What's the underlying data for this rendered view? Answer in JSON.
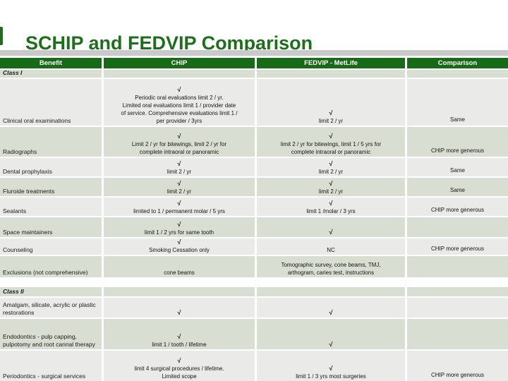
{
  "slide": {
    "title": "SCHIP and FEDVIP Comparison",
    "accent_color": "#1e6e1e",
    "header_bg_color": "#176b17",
    "row_light_color": "#eaeae8",
    "row_green_color": "#d9ded3"
  },
  "table": {
    "check_glyph": "√",
    "columns": [
      "Benefit",
      "CHIP",
      "FEDVIP - MetLife",
      "Comparison"
    ],
    "rows": [
      {
        "kind": "section",
        "label": "Class I",
        "height": 11,
        "gap": 2,
        "shade": "green"
      },
      {
        "kind": "data",
        "label": "Clinical oral examinations",
        "height": 66,
        "gap": 2,
        "shade": "light",
        "chip": {
          "check": true,
          "lines": [
            "Periodic oral evaluations limit 2 / yr.",
            "Limited oral evaluations limit 1 / provider date",
            "of service.  Comprehensive evaluations limit 1 /",
            "per provider / 3yrs"
          ]
        },
        "fedvip": {
          "check": true,
          "lines": [
            "limit 2 / yr"
          ]
        },
        "comparison": "Same"
      },
      {
        "kind": "data",
        "label": "Radiographs",
        "height": 42,
        "gap": 2,
        "shade": "green",
        "chip": {
          "check": true,
          "lines": [
            "Limit 2 / yr for bitewings, limit 2 / yr for",
            "complete intraoral or panoramic"
          ]
        },
        "fedvip": {
          "check": true,
          "lines": [
            "limit 2 / yr for bitewings, limit 1 / 5 yrs for",
            "complete intraoral or panoramic"
          ]
        },
        "comparison": "CHIP more generous"
      },
      {
        "kind": "data",
        "label": "Dental prophylaxis",
        "height": 26,
        "gap": 2,
        "shade": "light",
        "chip": {
          "check": true,
          "lines": [
            "limit 2 / yr"
          ]
        },
        "fedvip": {
          "check": true,
          "lines": [
            "limit 2 / yr"
          ]
        },
        "comparison": "Same"
      },
      {
        "kind": "data",
        "label": "Fluroide treatments",
        "height": 26,
        "gap": 2,
        "shade": "green",
        "chip": {
          "check": true,
          "lines": [
            "limit 2 / yr"
          ]
        },
        "fedvip": {
          "check": true,
          "lines": [
            "limit 2 / yr"
          ]
        },
        "comparison": "Same"
      },
      {
        "kind": "data",
        "label": "Sealants",
        "height": 26,
        "gap": 2,
        "shade": "light",
        "chip": {
          "check": true,
          "lines": [
            "limited to 1 / permanent  molar / 5 yrs"
          ]
        },
        "fedvip": {
          "check": true,
          "lines": [
            "limit 1 /molar / 3 yrs"
          ]
        },
        "comparison": "CHIP more generous"
      },
      {
        "kind": "data",
        "label": "Space maintainers",
        "height": 28,
        "gap": 2,
        "shade": "green",
        "chip": {
          "check": true,
          "lines": [
            "limit 1 / 2 yrs for same tooth"
          ]
        },
        "fedvip": {
          "check": true,
          "lines": []
        },
        "comparison": ""
      },
      {
        "kind": "data",
        "label": "Counseling",
        "height": 23,
        "gap": 2,
        "shade": "light",
        "chip": {
          "check": true,
          "lines": [
            "Smoking Cessation only"
          ]
        },
        "fedvip": {
          "check": false,
          "lines": [
            "NC"
          ]
        },
        "comparison": "CHIP more generous"
      },
      {
        "kind": "data",
        "label": "Exclusions (not comprehensive)",
        "height": 30,
        "gap": 2,
        "shade": "green",
        "chip": {
          "check": false,
          "lines": [
            "cone beams"
          ]
        },
        "fedvip": {
          "check": false,
          "lines": [
            "Tomographic survey, cone beams, TMJ,",
            "arthogram, caries test, instructions"
          ]
        },
        "comparison": ""
      },
      {
        "kind": "section",
        "label": "Class II",
        "height": 13,
        "gap": 14,
        "shade": "green"
      },
      {
        "kind": "data",
        "label": "Amalgam, silicate, acrylic or plastic restorations",
        "height": 28,
        "gap": 2,
        "shade": "light",
        "chip": {
          "check": true,
          "lines": []
        },
        "fedvip": {
          "check": true,
          "lines": []
        },
        "comparison": ""
      },
      {
        "kind": "data",
        "label": "Endodontics - pulp capping, pulpotomy and root cannal therapy",
        "height": 43,
        "gap": 2,
        "shade": "green",
        "chip": {
          "check": true,
          "lines": [
            "limit 1 / tooth / lifetime"
          ]
        },
        "fedvip": {
          "check": true,
          "lines": []
        },
        "comparison": ""
      },
      {
        "kind": "data",
        "label": "Periodontics - surgical services",
        "height": 43,
        "gap": 2,
        "shade": "light",
        "chip": {
          "check": true,
          "lines": [
            "limit 4 surgical procedures / lifetime.",
            "Limited scope"
          ]
        },
        "fedvip": {
          "check": true,
          "lines": [
            "limit 1 / 3 yrs most surgeries"
          ]
        },
        "comparison": "CHIP more generous"
      }
    ]
  }
}
